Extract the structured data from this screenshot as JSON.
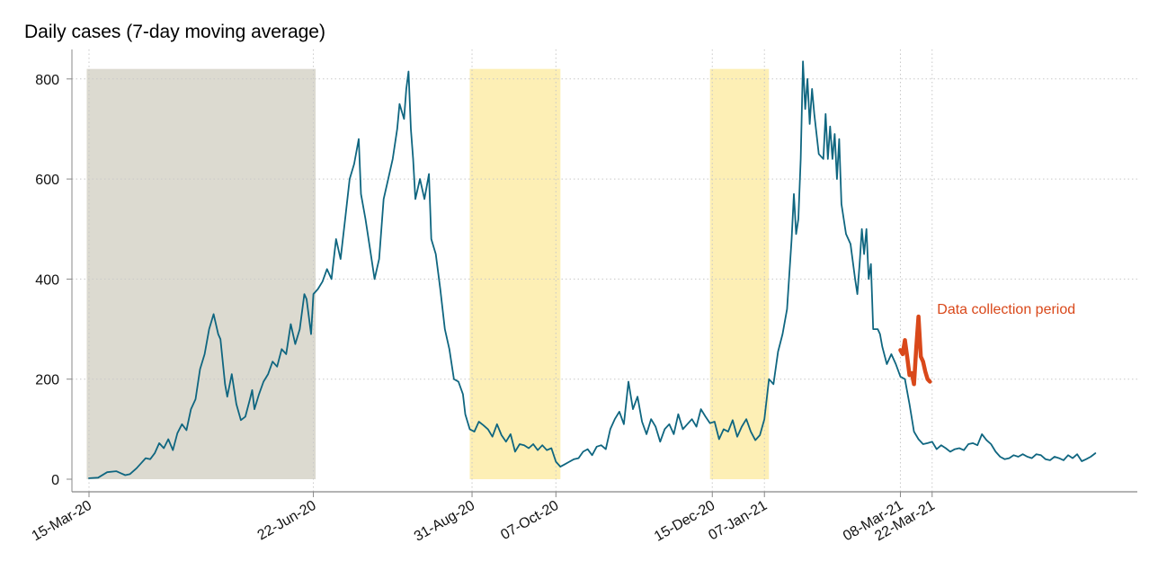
{
  "chart_data": {
    "type": "line",
    "title": "Daily cases (7-day moving average)",
    "xlabel": "",
    "ylabel": "",
    "ylim": [
      0,
      850
    ],
    "yticks": [
      0,
      200,
      400,
      600,
      800
    ],
    "grid": "horizontal and vertical dotted",
    "xticks": [
      {
        "label": "15-Mar-20",
        "day": 0
      },
      {
        "label": "22-Jun-20",
        "day": 99
      },
      {
        "label": "31-Aug-20",
        "day": 169
      },
      {
        "label": "07-Oct-20",
        "day": 206
      },
      {
        "label": "15-Dec-20",
        "day": 275
      },
      {
        "label": "07-Jan-21",
        "day": 298
      },
      {
        "label": "08-Mar-21",
        "day": 358
      },
      {
        "label": "22-Mar-21",
        "day": 372
      }
    ],
    "shaded_periods": [
      {
        "from_day": -1,
        "to_day": 100,
        "color": "#dcdad0"
      },
      {
        "from_day": 168,
        "to_day": 208,
        "color": "#fdefb5"
      },
      {
        "from_day": 274,
        "to_day": 300,
        "color": "#fdefb5"
      }
    ],
    "series": [
      {
        "name": "Daily cases (7-day moving average)",
        "color": "#0f6680",
        "points": [
          [
            0,
            2
          ],
          [
            4,
            3
          ],
          [
            8,
            14
          ],
          [
            12,
            16
          ],
          [
            14,
            12
          ],
          [
            16,
            8
          ],
          [
            18,
            10
          ],
          [
            21,
            22
          ],
          [
            23,
            32
          ],
          [
            25,
            42
          ],
          [
            27,
            40
          ],
          [
            29,
            52
          ],
          [
            31,
            72
          ],
          [
            33,
            62
          ],
          [
            35,
            80
          ],
          [
            37,
            58
          ],
          [
            39,
            92
          ],
          [
            41,
            110
          ],
          [
            43,
            98
          ],
          [
            45,
            140
          ],
          [
            47,
            160
          ],
          [
            49,
            220
          ],
          [
            51,
            250
          ],
          [
            53,
            300
          ],
          [
            55,
            330
          ],
          [
            57,
            290
          ],
          [
            58,
            280
          ],
          [
            60,
            190
          ],
          [
            61,
            165
          ],
          [
            63,
            210
          ],
          [
            65,
            150
          ],
          [
            67,
            118
          ],
          [
            69,
            125
          ],
          [
            71,
            160
          ],
          [
            72,
            178
          ],
          [
            73,
            140
          ],
          [
            75,
            170
          ],
          [
            77,
            195
          ],
          [
            79,
            210
          ],
          [
            81,
            235
          ],
          [
            83,
            225
          ],
          [
            85,
            260
          ],
          [
            87,
            250
          ],
          [
            89,
            310
          ],
          [
            91,
            270
          ],
          [
            93,
            300
          ],
          [
            95,
            370
          ],
          [
            96,
            360
          ],
          [
            98,
            290
          ],
          [
            99,
            370
          ],
          [
            101,
            380
          ],
          [
            103,
            395
          ],
          [
            105,
            420
          ],
          [
            107,
            400
          ],
          [
            109,
            480
          ],
          [
            111,
            440
          ],
          [
            113,
            520
          ],
          [
            115,
            600
          ],
          [
            117,
            630
          ],
          [
            119,
            680
          ],
          [
            120,
            570
          ],
          [
            122,
            520
          ],
          [
            124,
            460
          ],
          [
            126,
            400
          ],
          [
            128,
            440
          ],
          [
            130,
            560
          ],
          [
            132,
            600
          ],
          [
            134,
            640
          ],
          [
            136,
            700
          ],
          [
            137,
            750
          ],
          [
            139,
            720
          ],
          [
            140,
            780
          ],
          [
            141,
            815
          ],
          [
            142,
            700
          ],
          [
            143,
            640
          ],
          [
            144,
            560
          ],
          [
            146,
            600
          ],
          [
            148,
            560
          ],
          [
            150,
            610
          ],
          [
            151,
            480
          ],
          [
            153,
            450
          ],
          [
            155,
            380
          ],
          [
            157,
            300
          ],
          [
            159,
            260
          ],
          [
            161,
            200
          ],
          [
            163,
            195
          ],
          [
            165,
            170
          ],
          [
            166,
            130
          ],
          [
            168,
            100
          ],
          [
            170,
            95
          ],
          [
            172,
            115
          ],
          [
            174,
            108
          ],
          [
            176,
            100
          ],
          [
            178,
            85
          ],
          [
            180,
            110
          ],
          [
            182,
            88
          ],
          [
            184,
            75
          ],
          [
            186,
            90
          ],
          [
            188,
            55
          ],
          [
            190,
            70
          ],
          [
            192,
            68
          ],
          [
            194,
            62
          ],
          [
            196,
            70
          ],
          [
            198,
            58
          ],
          [
            200,
            68
          ],
          [
            202,
            58
          ],
          [
            204,
            62
          ],
          [
            206,
            35
          ],
          [
            208,
            25
          ],
          [
            210,
            30
          ],
          [
            212,
            35
          ],
          [
            214,
            40
          ],
          [
            216,
            42
          ],
          [
            218,
            55
          ],
          [
            220,
            60
          ],
          [
            222,
            48
          ],
          [
            224,
            65
          ],
          [
            226,
            68
          ],
          [
            228,
            60
          ],
          [
            230,
            100
          ],
          [
            232,
            120
          ],
          [
            234,
            135
          ],
          [
            236,
            110
          ],
          [
            238,
            195
          ],
          [
            240,
            140
          ],
          [
            242,
            165
          ],
          [
            244,
            115
          ],
          [
            246,
            90
          ],
          [
            248,
            120
          ],
          [
            250,
            105
          ],
          [
            252,
            75
          ],
          [
            254,
            100
          ],
          [
            256,
            110
          ],
          [
            258,
            90
          ],
          [
            260,
            130
          ],
          [
            262,
            100
          ],
          [
            264,
            110
          ],
          [
            266,
            120
          ],
          [
            268,
            105
          ],
          [
            270,
            140
          ],
          [
            272,
            125
          ],
          [
            274,
            112
          ],
          [
            276,
            115
          ],
          [
            278,
            80
          ],
          [
            280,
            100
          ],
          [
            282,
            95
          ],
          [
            284,
            118
          ],
          [
            286,
            85
          ],
          [
            288,
            105
          ],
          [
            290,
            120
          ],
          [
            292,
            95
          ],
          [
            294,
            78
          ],
          [
            296,
            88
          ],
          [
            298,
            120
          ],
          [
            300,
            200
          ],
          [
            302,
            190
          ],
          [
            304,
            255
          ],
          [
            306,
            290
          ],
          [
            308,
            340
          ],
          [
            310,
            480
          ],
          [
            311,
            570
          ],
          [
            312,
            490
          ],
          [
            313,
            520
          ],
          [
            314,
            640
          ],
          [
            315,
            835
          ],
          [
            316,
            740
          ],
          [
            317,
            800
          ],
          [
            318,
            710
          ],
          [
            319,
            780
          ],
          [
            320,
            730
          ],
          [
            321,
            690
          ],
          [
            322,
            650
          ],
          [
            324,
            640
          ],
          [
            325,
            730
          ],
          [
            326,
            640
          ],
          [
            327,
            705
          ],
          [
            328,
            640
          ],
          [
            329,
            690
          ],
          [
            330,
            600
          ],
          [
            331,
            680
          ],
          [
            332,
            550
          ],
          [
            334,
            490
          ],
          [
            336,
            470
          ],
          [
            338,
            400
          ],
          [
            339,
            370
          ],
          [
            340,
            430
          ],
          [
            341,
            500
          ],
          [
            342,
            450
          ],
          [
            343,
            500
          ],
          [
            344,
            400
          ],
          [
            345,
            430
          ],
          [
            346,
            300
          ],
          [
            348,
            300
          ],
          [
            349,
            290
          ],
          [
            350,
            265
          ],
          [
            352,
            230
          ],
          [
            354,
            250
          ],
          [
            356,
            230
          ],
          [
            358,
            205
          ],
          [
            360,
            200
          ],
          [
            362,
            150
          ],
          [
            364,
            95
          ],
          [
            366,
            80
          ],
          [
            368,
            70
          ],
          [
            370,
            72
          ],
          [
            372,
            75
          ],
          [
            374,
            60
          ],
          [
            376,
            68
          ],
          [
            378,
            62
          ],
          [
            380,
            55
          ],
          [
            382,
            60
          ],
          [
            384,
            62
          ],
          [
            386,
            58
          ],
          [
            388,
            70
          ],
          [
            390,
            72
          ],
          [
            392,
            68
          ],
          [
            394,
            90
          ],
          [
            396,
            78
          ],
          [
            398,
            70
          ],
          [
            400,
            55
          ],
          [
            402,
            45
          ],
          [
            404,
            40
          ],
          [
            406,
            42
          ],
          [
            408,
            48
          ],
          [
            410,
            45
          ],
          [
            412,
            50
          ],
          [
            414,
            45
          ],
          [
            416,
            42
          ],
          [
            418,
            50
          ],
          [
            420,
            48
          ],
          [
            422,
            40
          ],
          [
            424,
            38
          ],
          [
            426,
            45
          ],
          [
            428,
            42
          ],
          [
            430,
            38
          ],
          [
            432,
            48
          ],
          [
            434,
            42
          ],
          [
            436,
            50
          ],
          [
            438,
            36
          ],
          [
            440,
            40
          ],
          [
            442,
            45
          ],
          [
            444,
            52
          ]
        ]
      },
      {
        "name": "Data collection period",
        "color": "#d9481a",
        "points": [
          [
            358,
            258
          ],
          [
            359,
            250
          ],
          [
            360,
            278
          ],
          [
            361,
            245
          ],
          [
            362,
            208
          ],
          [
            363,
            212
          ],
          [
            364,
            190
          ],
          [
            365,
            262
          ],
          [
            366,
            325
          ],
          [
            367,
            245
          ],
          [
            368,
            235
          ],
          [
            369,
            215
          ],
          [
            370,
            200
          ],
          [
            371,
            195
          ]
        ]
      }
    ],
    "annotations": [
      {
        "text": "Data collection period",
        "near_day": 373,
        "near_value": 295,
        "color": "#d9481a"
      }
    ]
  }
}
